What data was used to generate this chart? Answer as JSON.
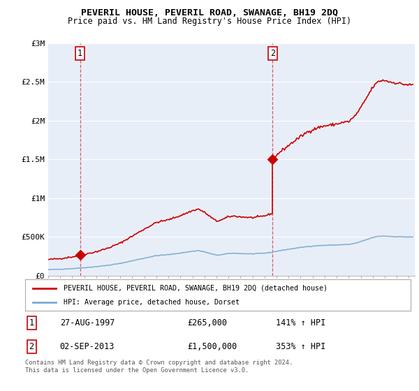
{
  "title": "PEVERIL HOUSE, PEVERIL ROAD, SWANAGE, BH19 2DQ",
  "subtitle": "Price paid vs. HM Land Registry's House Price Index (HPI)",
  "legend_line1": "PEVERIL HOUSE, PEVERIL ROAD, SWANAGE, BH19 2DQ (detached house)",
  "legend_line2": "HPI: Average price, detached house, Dorset",
  "footnote": "Contains HM Land Registry data © Crown copyright and database right 2024.\nThis data is licensed under the Open Government Licence v3.0.",
  "sale1_label": "1",
  "sale1_date": "27-AUG-1997",
  "sale1_year": 1997.646,
  "sale1_price": 265000,
  "sale1_pct": "141% ↑ HPI",
  "sale2_label": "2",
  "sale2_date": "02-SEP-2013",
  "sale2_year": 2013.671,
  "sale2_price": 1500000,
  "sale2_pct": "353% ↑ HPI",
  "red_color": "#cc0000",
  "blue_color": "#7aabcf",
  "background_color": "#e8eef8",
  "grid_color": "#ffffff",
  "ylim": [
    0,
    3000000
  ],
  "xlim": [
    1995.0,
    2025.5
  ],
  "title_fontsize": 9.5,
  "subtitle_fontsize": 8.5
}
